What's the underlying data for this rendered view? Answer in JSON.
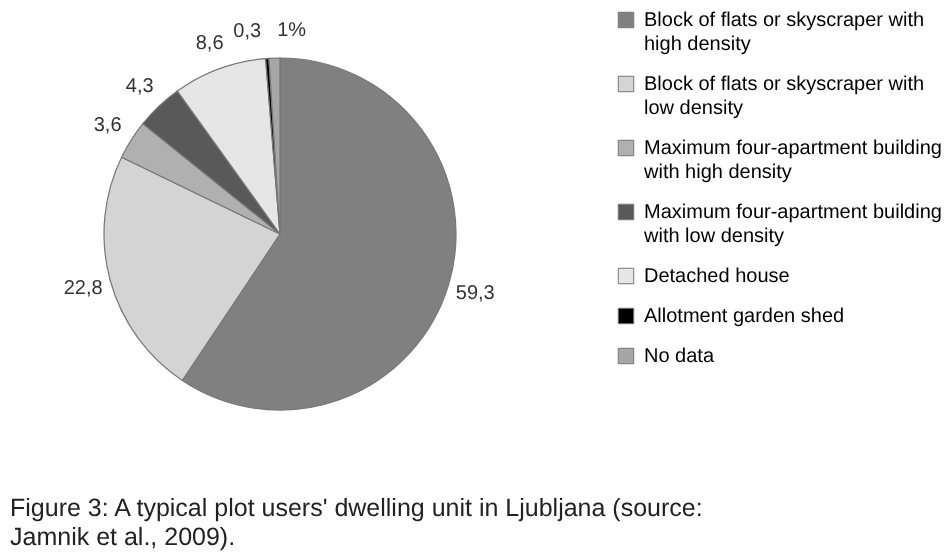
{
  "chart_data": {
    "type": "pie",
    "title": "Figure 3: A typical plot users' dwelling unit in Ljubljana (source: Jamnik et al., 2009).",
    "categories": [
      "Block of flats or skyscraper with high density",
      "Block of flats or skyscraper with low density",
      "Maximum four-apartment building with high density",
      "Maximum four-apartment building with low density",
      "Detached house",
      "Allotment garden shed",
      "No data"
    ],
    "values": [
      59.3,
      22.8,
      3.6,
      4.3,
      8.6,
      0.3,
      1
    ],
    "value_labels": [
      "59,3",
      "22,8",
      "3,6",
      "4,3",
      "8,6",
      "0,3",
      "1%"
    ],
    "colors": [
      "#808080",
      "#d4d4d4",
      "#b0b0b0",
      "#595959",
      "#e6e6e6",
      "#000000",
      "#a6a6a6"
    ],
    "legend": "right"
  }
}
